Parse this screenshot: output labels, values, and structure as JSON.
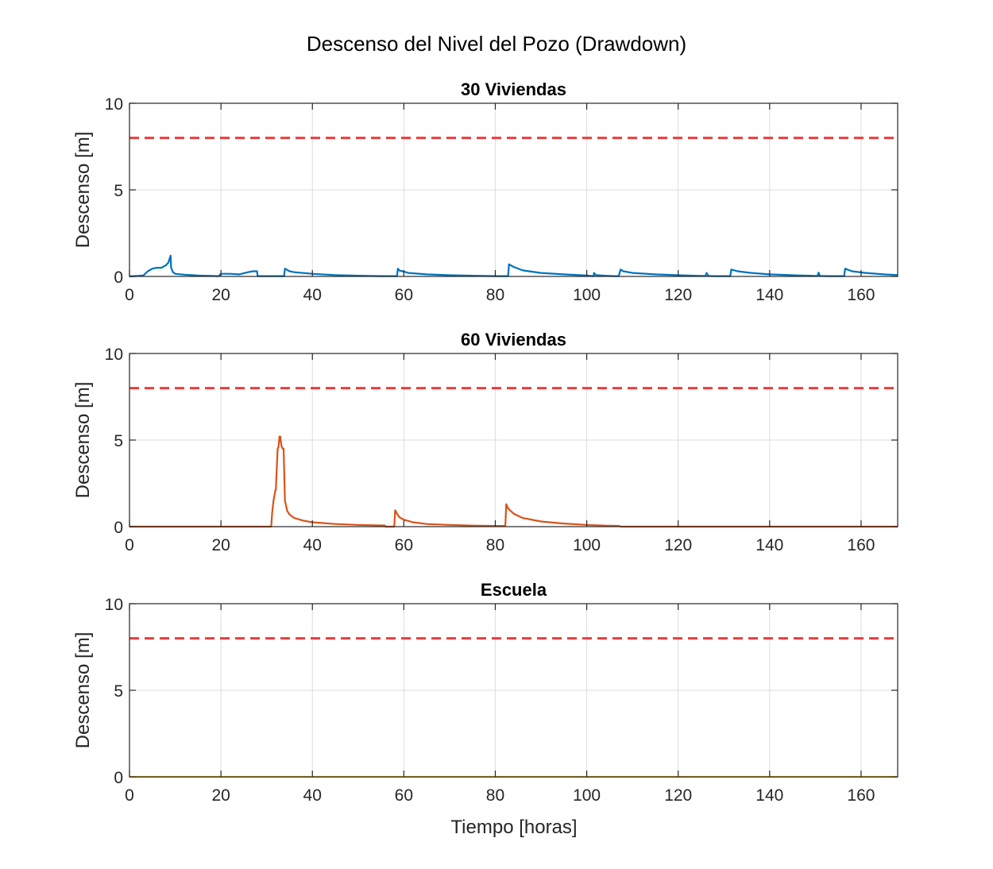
{
  "figure": {
    "title": "Descenso del Nivel del Pozo (Drawdown)",
    "xlabel": "Tiempo [horas]"
  },
  "colors": {
    "threshold": "#ee3b3b",
    "series_30": "#0072bd",
    "series_60": "#d95319",
    "series_escuela": "#edb120"
  },
  "chart_data": [
    {
      "type": "line",
      "title": "30 Viviendas",
      "ylabel": "Descenso [m]",
      "xlim": [
        0,
        168
      ],
      "ylim": [
        0,
        10
      ],
      "xticks": [
        0,
        20,
        40,
        60,
        80,
        100,
        120,
        140,
        160
      ],
      "yticks": [
        0,
        5,
        10
      ],
      "grid": true,
      "threshold": 8,
      "series": [
        {
          "color_key": "series_30",
          "x": [
            0,
            3,
            4,
            5,
            6,
            7,
            8,
            8.5,
            9,
            9.1,
            9.5,
            10,
            12,
            15,
            18,
            19.5,
            20,
            22,
            24,
            26,
            27,
            27.9,
            28,
            30,
            33.8,
            34,
            35,
            36,
            40,
            45,
            50,
            55,
            58.5,
            58.7,
            59,
            61,
            65,
            70,
            75,
            80,
            82.8,
            83,
            84,
            86,
            90,
            95,
            100,
            101.5,
            101.6,
            102,
            104,
            106,
            107,
            107.4,
            108,
            110,
            115,
            120,
            125,
            126,
            126.2,
            126.6,
            128,
            131.4,
            131.6,
            133,
            136,
            140,
            145,
            150,
            150.5,
            150.7,
            151,
            153,
            156.3,
            156.5,
            158,
            161,
            165,
            168
          ],
          "y": [
            0,
            0.05,
            0.3,
            0.45,
            0.5,
            0.5,
            0.65,
            0.8,
            1.2,
            0.5,
            0.25,
            0.15,
            0.1,
            0.05,
            0.03,
            0.02,
            0.15,
            0.15,
            0.12,
            0.25,
            0.3,
            0.3,
            0.02,
            0.02,
            0.02,
            0.45,
            0.3,
            0.25,
            0.15,
            0.08,
            0.04,
            0.02,
            0.02,
            0.45,
            0.35,
            0.2,
            0.12,
            0.07,
            0.04,
            0.02,
            0.02,
            0.7,
            0.55,
            0.35,
            0.2,
            0.12,
            0.05,
            0.02,
            0.2,
            0.08,
            0.04,
            0.02,
            0.02,
            0.4,
            0.3,
            0.2,
            0.12,
            0.07,
            0.03,
            0.03,
            0.2,
            0.03,
            0.02,
            0.02,
            0.4,
            0.3,
            0.2,
            0.12,
            0.07,
            0.03,
            0.03,
            0.22,
            0.03,
            0.02,
            0.02,
            0.45,
            0.3,
            0.2,
            0.12,
            0.08
          ]
        }
      ]
    },
    {
      "type": "line",
      "title": "60 Viviendas",
      "ylabel": "Descenso [m]",
      "xlim": [
        0,
        168
      ],
      "ylim": [
        0,
        10
      ],
      "xticks": [
        0,
        20,
        40,
        60,
        80,
        100,
        120,
        140,
        160
      ],
      "yticks": [
        0,
        5,
        10
      ],
      "grid": true,
      "threshold": 8,
      "series": [
        {
          "color_key": "series_60",
          "x": [
            0,
            31,
            31.2,
            31.5,
            31.9,
            32,
            32.4,
            32.6,
            32.8,
            33,
            33.2,
            33.5,
            33.7,
            34,
            34.5,
            35,
            36,
            38,
            40,
            45,
            50,
            55,
            55.8,
            56,
            57.9,
            58.1,
            58.5,
            59,
            60,
            62,
            65,
            70,
            75,
            80,
            82.2,
            82.4,
            82.8,
            83.2,
            84,
            86,
            90,
            95,
            100,
            104,
            107,
            107.5,
            110,
            120,
            140,
            168
          ],
          "y": [
            0,
            0,
            0.8,
            1.5,
            2.1,
            2.1,
            4.5,
            4.6,
            5.2,
            5.2,
            4.7,
            4.5,
            4.5,
            1.5,
            0.9,
            0.7,
            0.5,
            0.35,
            0.25,
            0.15,
            0.1,
            0.07,
            0.07,
            0,
            0,
            0.95,
            0.75,
            0.55,
            0.4,
            0.25,
            0.15,
            0.1,
            0.06,
            0.04,
            0.04,
            1.3,
            1.05,
            0.95,
            0.75,
            0.5,
            0.3,
            0.18,
            0.1,
            0.06,
            0.04,
            0,
            0,
            0,
            0,
            0
          ]
        }
      ]
    },
    {
      "type": "line",
      "title": "Escuela",
      "ylabel": "Descenso [m]",
      "xlim": [
        0,
        168
      ],
      "ylim": [
        0,
        10
      ],
      "xticks": [
        0,
        20,
        40,
        60,
        80,
        100,
        120,
        140,
        160
      ],
      "yticks": [
        0,
        5,
        10
      ],
      "grid": true,
      "threshold": 8,
      "series": [
        {
          "color_key": "series_escuela",
          "x": [
            0,
            168
          ],
          "y": [
            0,
            0
          ]
        }
      ]
    }
  ]
}
